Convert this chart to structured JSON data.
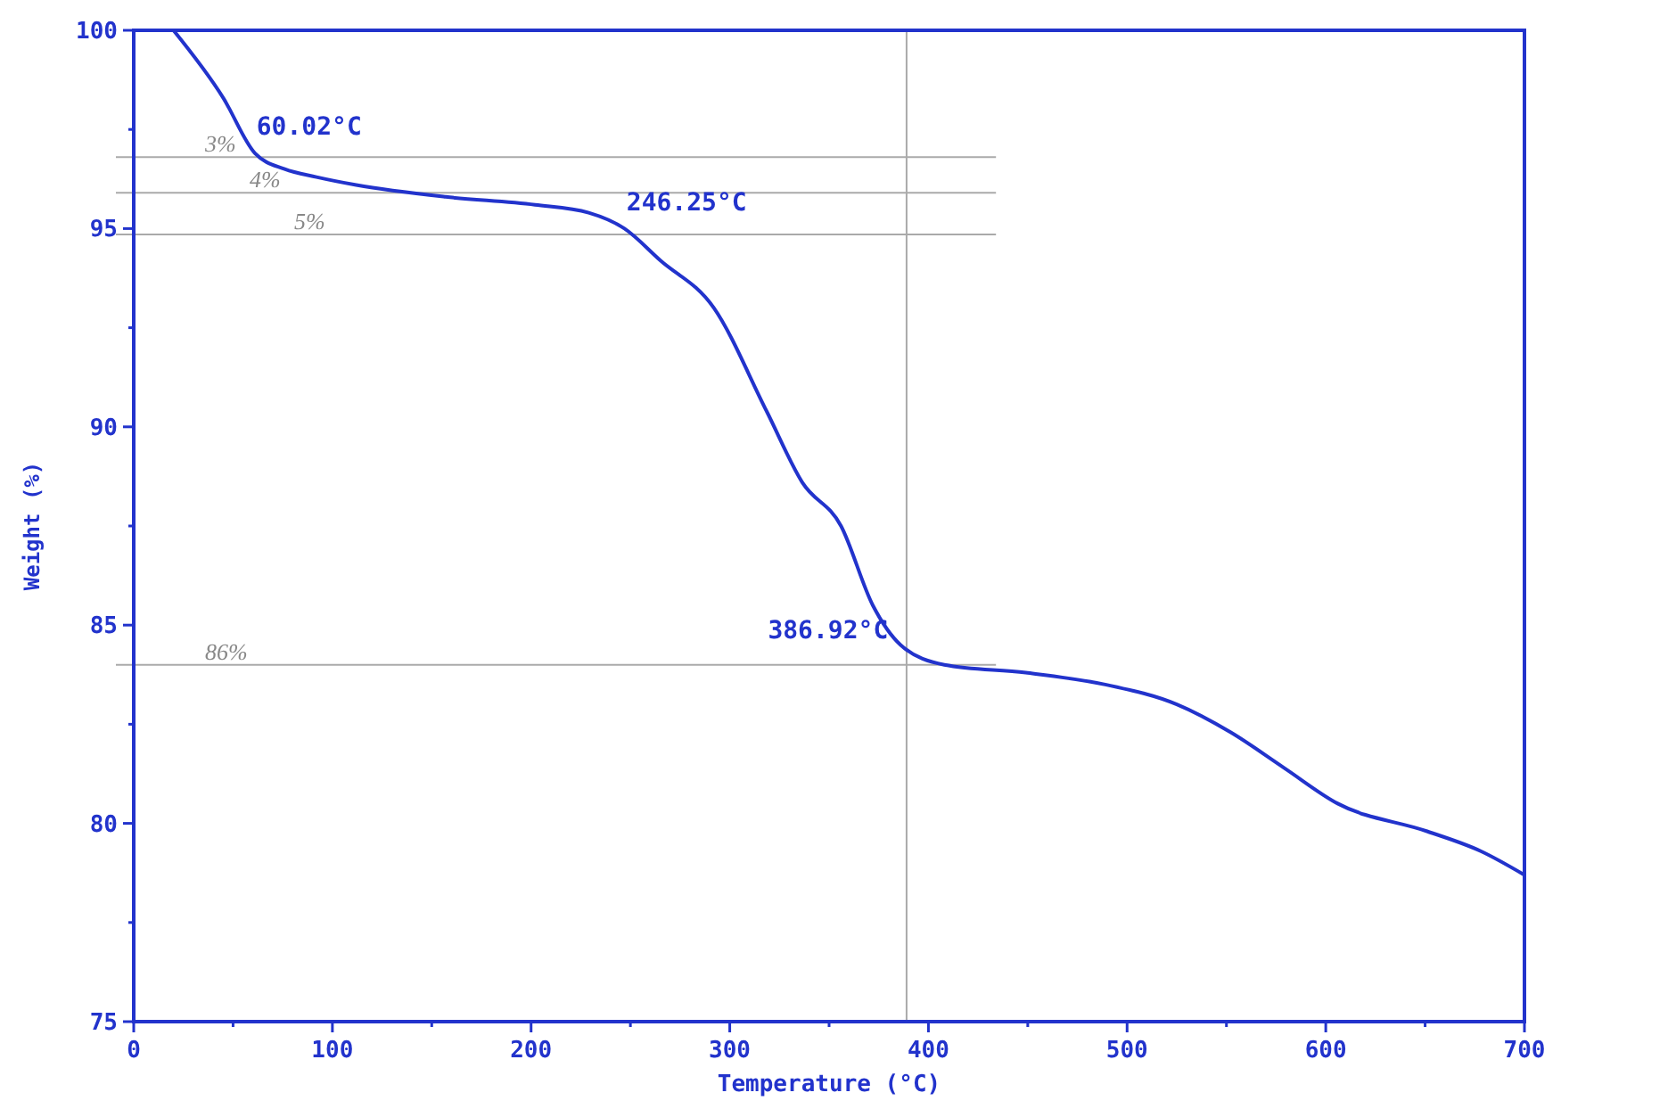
{
  "chart_data": {
    "type": "line",
    "xlabel": "Temperature (°C)",
    "ylabel": "Weight (%)",
    "xlim": [
      0,
      700
    ],
    "ylim": [
      75,
      100
    ],
    "xticks": [
      0,
      {
        "value": 50,
        "label": null
      },
      100,
      {
        "value": 150,
        "label": null
      },
      200,
      {
        "value": 250,
        "label": null
      },
      300,
      {
        "value": 350,
        "label": null
      },
      400,
      {
        "value": 450,
        "label": null
      },
      500,
      {
        "value": 550,
        "label": null
      },
      600,
      {
        "value": 650,
        "label": null
      },
      700
    ],
    "yticks": [
      75,
      {
        "value": 77.5,
        "label": null
      },
      80,
      {
        "value": 82.5,
        "label": null
      },
      85,
      {
        "value": 87.5,
        "label": null
      },
      90,
      {
        "value": 92.5,
        "label": null
      },
      95,
      {
        "value": 97.5,
        "label": null
      },
      100
    ],
    "grid": false,
    "marker": "none",
    "line_style": "solid",
    "series": [
      {
        "color": "#2233cc",
        "x": [
          20,
          45,
          61,
          76,
          92,
          112,
          157,
          202,
          229,
          247,
          265,
          292,
          318.5,
          336.5,
          356,
          372,
          386,
          408,
          449,
          489,
          525,
          552,
          579,
          606,
          651,
          678,
          700
        ],
        "values": [
          100,
          98.3,
          96.9,
          96.5,
          96.3,
          96.1,
          95.8,
          95.6,
          95.4,
          95.0,
          94.2,
          93.0,
          90.4,
          88.6,
          87.5,
          85.5,
          84.5,
          84.0,
          83.8,
          83.5,
          83.0,
          82.3,
          81.4,
          80.5,
          79.8,
          79.3,
          78.7
        ]
      }
    ],
    "ref_lines": [
      {
        "axis": "y",
        "value": 96.8,
        "label": null,
        "color": "#aaaaaa"
      },
      {
        "axis": "y",
        "value": 95.9,
        "label": null,
        "color": "#aaaaaa"
      },
      {
        "axis": "y",
        "value": 94.85,
        "label": null,
        "color": "#aaaaaa"
      },
      {
        "axis": "y",
        "value": 84.0,
        "label": null,
        "color": "#aaaaaa"
      },
      {
        "axis": "x",
        "value": 389,
        "label": null,
        "color": "#aaaaaa"
      }
    ],
    "annotations": [
      {
        "text": "60.02°C",
        "x": 60.02,
        "y": 97.0
      },
      {
        "text": "246.25°C",
        "x": 246.25,
        "y": 95.1
      },
      {
        "text": "386.92°C",
        "x": 386.92,
        "y": 84.3
      },
      "3%",
      "4%",
      "5%",
      "86%"
    ]
  }
}
